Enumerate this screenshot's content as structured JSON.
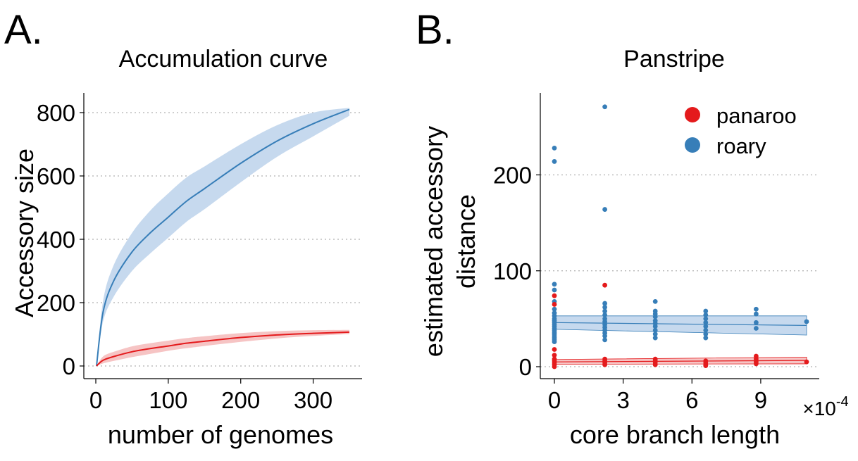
{
  "panel_a": {
    "letter": "A.",
    "title": "Accumulation curve",
    "xlabel": "number of genomes",
    "ylabel": "Accessory size",
    "xticks": [
      "0",
      "100",
      "200",
      "300"
    ],
    "yticks": [
      "0",
      "200",
      "400",
      "600",
      "800"
    ]
  },
  "panel_b": {
    "letter": "B.",
    "title": "Panstripe",
    "xlabel": "core branch length",
    "ylabel_line1": "estimated accessory",
    "ylabel_line2": "distance",
    "xticks": [
      "0",
      "3",
      "6",
      "9"
    ],
    "yticks": [
      "0",
      "100",
      "200"
    ],
    "x_multiplier": "×10",
    "x_multiplier_exp": "-4",
    "legend": [
      "panaroo",
      "roary"
    ]
  },
  "colors": {
    "panaroo": "#e41a1c",
    "roary": "#377eb8",
    "panaroo_band": "#f6c4c4",
    "roary_band": "#c6d9ee",
    "grid": "#b0b0b0"
  },
  "chart_data": [
    {
      "type": "line",
      "title": "Accumulation curve",
      "xlabel": "number of genomes",
      "ylabel": "Accessory size",
      "xlim": [
        0,
        350
      ],
      "ylim": [
        0,
        800
      ],
      "grid": "horizontal dotted",
      "x": [
        1,
        10,
        25,
        50,
        75,
        100,
        125,
        150,
        200,
        250,
        300,
        350
      ],
      "series": [
        {
          "name": "roary",
          "values": [
            0,
            170,
            270,
            360,
            420,
            470,
            520,
            560,
            640,
            710,
            765,
            810
          ],
          "lower": [
            0,
            140,
            220,
            300,
            355,
            405,
            455,
            495,
            580,
            660,
            725,
            790
          ],
          "upper": [
            0,
            205,
            320,
            420,
            490,
            545,
            595,
            630,
            700,
            760,
            800,
            815
          ]
        },
        {
          "name": "panaroo",
          "values": [
            0,
            18,
            30,
            45,
            55,
            63,
            72,
            78,
            90,
            98,
            103,
            107
          ],
          "lower": [
            0,
            8,
            16,
            28,
            38,
            48,
            56,
            63,
            76,
            87,
            95,
            101
          ],
          "upper": [
            0,
            30,
            45,
            62,
            72,
            80,
            88,
            94,
            104,
            110,
            113,
            114
          ]
        }
      ]
    },
    {
      "type": "scatter",
      "title": "Panstripe",
      "xlabel": "core branch length",
      "ylabel": "estimated accessory distance",
      "x_scale": "×10^-4",
      "xlim": [
        -0.3,
        11.3
      ],
      "ylim": [
        -10,
        280
      ],
      "grid": "horizontal dotted",
      "legend_position": "top-right",
      "series": [
        {
          "name": "roary",
          "points": [
            [
              0,
              228
            ],
            [
              0,
              214
            ],
            [
              0,
              86
            ],
            [
              0,
              80
            ],
            [
              0,
              68
            ],
            [
              0,
              60
            ],
            [
              0,
              56
            ],
            [
              0,
              53
            ],
            [
              0,
              50
            ],
            [
              0,
              48
            ],
            [
              0,
              46
            ],
            [
              0,
              44
            ],
            [
              0,
              42
            ],
            [
              0,
              40
            ],
            [
              0,
              38
            ],
            [
              0,
              36
            ],
            [
              0,
              34
            ],
            [
              0,
              32
            ],
            [
              0,
              30
            ],
            [
              0,
              28
            ],
            [
              0,
              26
            ],
            [
              2.2,
              271
            ],
            [
              2.2,
              164
            ],
            [
              2.2,
              66
            ],
            [
              2.2,
              62
            ],
            [
              2.2,
              58
            ],
            [
              2.2,
              54
            ],
            [
              2.2,
              50
            ],
            [
              2.2,
              47
            ],
            [
              2.2,
              44
            ],
            [
              2.2,
              41
            ],
            [
              2.2,
              38
            ],
            [
              2.2,
              35
            ],
            [
              2.2,
              32
            ],
            [
              2.2,
              28
            ],
            [
              4.4,
              68
            ],
            [
              4.4,
              58
            ],
            [
              4.4,
              55
            ],
            [
              4.4,
              52
            ],
            [
              4.4,
              48
            ],
            [
              4.4,
              45
            ],
            [
              4.4,
              42
            ],
            [
              4.4,
              38
            ],
            [
              4.4,
              34
            ],
            [
              4.4,
              30
            ],
            [
              6.6,
              58
            ],
            [
              6.6,
              54
            ],
            [
              6.6,
              50
            ],
            [
              6.6,
              46
            ],
            [
              6.6,
              42
            ],
            [
              6.6,
              38
            ],
            [
              6.6,
              34
            ],
            [
              6.6,
              30
            ],
            [
              8.8,
              60
            ],
            [
              8.8,
              55
            ],
            [
              8.8,
              46
            ],
            [
              8.8,
              40
            ],
            [
              11,
              47
            ]
          ],
          "fit": {
            "x": [
              0,
              11
            ],
            "y": [
              46,
              43
            ],
            "lower": [
              39,
              33
            ],
            "upper": [
              53,
              53
            ]
          }
        },
        {
          "name": "panaroo",
          "points": [
            [
              0,
              74
            ],
            [
              0,
              65
            ],
            [
              0,
              18
            ],
            [
              0,
              12
            ],
            [
              0,
              8
            ],
            [
              0,
              6
            ],
            [
              0,
              4
            ],
            [
              0,
              2
            ],
            [
              0,
              0
            ],
            [
              2.2,
              85
            ],
            [
              2.2,
              8
            ],
            [
              2.2,
              6
            ],
            [
              2.2,
              4
            ],
            [
              2.2,
              2
            ],
            [
              4.4,
              8
            ],
            [
              4.4,
              6
            ],
            [
              4.4,
              4
            ],
            [
              4.4,
              2
            ],
            [
              6.6,
              6
            ],
            [
              6.6,
              4
            ],
            [
              6.6,
              2
            ],
            [
              6.6,
              1
            ],
            [
              8.8,
              11
            ],
            [
              8.8,
              8
            ],
            [
              8.8,
              5
            ],
            [
              8.8,
              3
            ],
            [
              11,
              5
            ]
          ],
          "fit": {
            "x": [
              0,
              11
            ],
            "y": [
              5,
              6.5
            ],
            "lower": [
              2.5,
              3
            ],
            "upper": [
              7.5,
              10
            ]
          }
        }
      ]
    }
  ]
}
